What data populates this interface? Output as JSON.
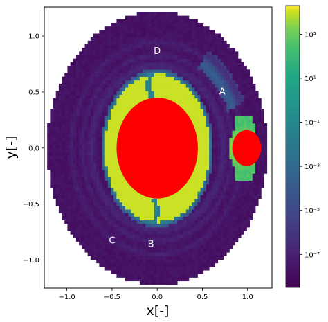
{
  "chart_data": {
    "type": "heatmap",
    "title": "",
    "xlabel": "x[-]",
    "ylabel": "y[-]",
    "xlim": [
      -1.25,
      1.27
    ],
    "ylim": [
      -1.25,
      1.26
    ],
    "x_ticks": [
      -1.0,
      -0.5,
      0.0,
      0.5,
      1.0
    ],
    "x_tick_labels": [
      "−1.0",
      "−0.5",
      "0.0",
      "0.5",
      "1.0"
    ],
    "y_ticks": [
      -1.0,
      -0.5,
      0.0,
      0.5,
      1.0
    ],
    "y_tick_labels": [
      "−1.0",
      "−0.5",
      "0.0",
      "0.5",
      "1.0"
    ],
    "grid": false,
    "colormap": "viridis",
    "color_scale": "log",
    "colorbar": {
      "min_exp": -8.5,
      "max_exp": 4.3,
      "tick_exps": [
        -7,
        -5,
        -3,
        -1,
        1,
        3
      ],
      "tick_labels": [
        "10⁻⁷",
        "10⁻⁵",
        "10⁻³",
        "10⁻¹",
        "10¹",
        "10³"
      ]
    },
    "domain_radius": 1.22,
    "primary_body": {
      "x": 0.0,
      "y": 0.0,
      "rx": 0.45,
      "ry": 0.45,
      "color": "#ff0000"
    },
    "secondary_body": {
      "x": 0.99,
      "y": 0.0,
      "r": 0.16,
      "color": "#ff0000"
    },
    "bright_region_max_radius": 0.62,
    "annotations": [
      {
        "text": "D",
        "x": 0.0,
        "y": 0.86
      },
      {
        "text": "A",
        "x": 0.72,
        "y": 0.5
      },
      {
        "text": "C",
        "x": -0.5,
        "y": -0.83
      },
      {
        "text": "B",
        "x": -0.07,
        "y": -0.86
      }
    ]
  }
}
